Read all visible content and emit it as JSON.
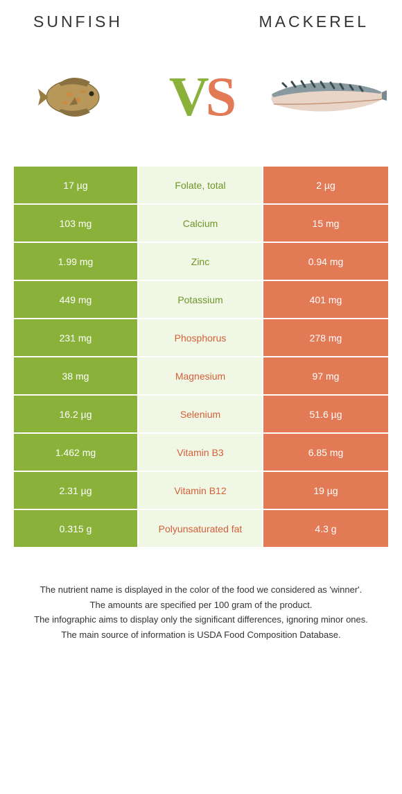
{
  "header": {
    "left_title": "Sunfish",
    "right_title": "Mackerel"
  },
  "vs": {
    "v": "V",
    "s": "S"
  },
  "colors": {
    "green": "#8ab23b",
    "green_pale": "#f1f7e5",
    "orange": "#e37a56",
    "label_green": "#6d9627",
    "label_orange": "#d25f38",
    "background": "#ffffff"
  },
  "rows": [
    {
      "left": "17 µg",
      "label": "Folate, total",
      "winner": "green",
      "right": "2 µg"
    },
    {
      "left": "103 mg",
      "label": "Calcium",
      "winner": "green",
      "right": "15 mg"
    },
    {
      "left": "1.99 mg",
      "label": "Zinc",
      "winner": "green",
      "right": "0.94 mg"
    },
    {
      "left": "449 mg",
      "label": "Potassium",
      "winner": "green",
      "right": "401 mg"
    },
    {
      "left": "231 mg",
      "label": "Phosphorus",
      "winner": "orange",
      "right": "278 mg"
    },
    {
      "left": "38 mg",
      "label": "Magnesium",
      "winner": "orange",
      "right": "97 mg"
    },
    {
      "left": "16.2 µg",
      "label": "Selenium",
      "winner": "orange",
      "right": "51.6 µg"
    },
    {
      "left": "1.462 mg",
      "label": "Vitamin B3",
      "winner": "orange",
      "right": "6.85 mg"
    },
    {
      "left": "2.31 µg",
      "label": "Vitamin B12",
      "winner": "orange",
      "right": "19 µg"
    },
    {
      "left": "0.315 g",
      "label": "Polyunsaturated fat",
      "winner": "orange",
      "right": "4.3 g"
    }
  ],
  "footer": {
    "line1": "The nutrient name is displayed in the color of the food we considered as 'winner'.",
    "line2": "The amounts are specified per 100 gram of the product.",
    "line3": "The infographic aims to display only the significant differences, ignoring minor ones.",
    "line4": "The main source of information is USDA Food Composition Database."
  }
}
